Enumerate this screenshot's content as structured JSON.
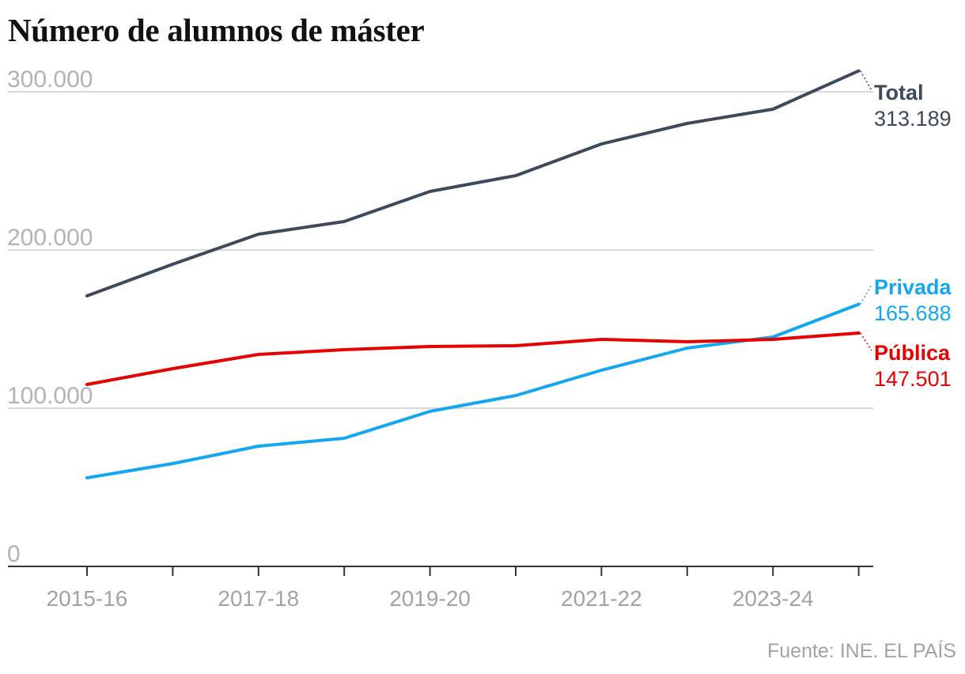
{
  "title": "Número de alumnos de máster",
  "source": "Fuente: INE. EL PAÍS",
  "chart_data": {
    "type": "line",
    "title": "Número de alumnos de máster",
    "x": [
      "2015-16",
      "2016-17",
      "2017-18",
      "2018-19",
      "2019-20",
      "2020-21",
      "2021-22",
      "2022-23",
      "2023-24",
      "2024-25"
    ],
    "x_tick_labels": [
      "2015-16",
      "2017-18",
      "2019-20",
      "2021-22",
      "2023-24"
    ],
    "ylim": [
      0,
      300000
    ],
    "y_ticks": [
      0,
      100000,
      200000,
      300000
    ],
    "y_tick_labels": [
      "0",
      "100.000",
      "200.000",
      "300.000"
    ],
    "grid": true,
    "series": [
      {
        "name": "Total",
        "color": "#3d4a5c",
        "values": [
          171000,
          191000,
          210000,
          218000,
          237000,
          247000,
          267000,
          280000,
          289000,
          313189
        ],
        "end_label": "313.189"
      },
      {
        "name": "Privada",
        "color": "#14a6f0",
        "values": [
          56000,
          65000,
          76000,
          81000,
          98000,
          108000,
          124000,
          138000,
          145000,
          165688
        ],
        "end_label": "165.688"
      },
      {
        "name": "Pública",
        "color": "#e60000",
        "values": [
          115000,
          125000,
          134000,
          137000,
          139000,
          139500,
          143500,
          142000,
          143500,
          147501
        ],
        "end_label": "147.501"
      }
    ]
  }
}
